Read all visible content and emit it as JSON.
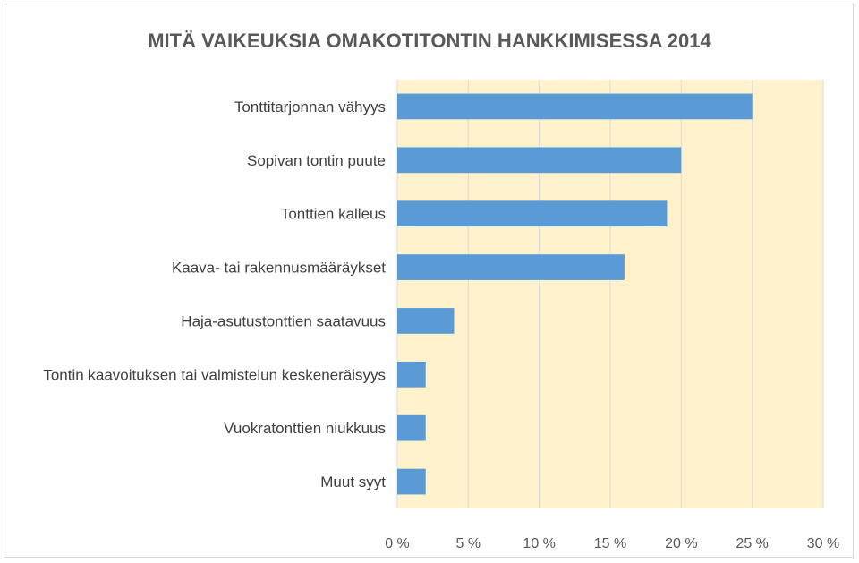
{
  "chart_data": {
    "type": "bar",
    "orientation": "horizontal",
    "title": "MITÄ VAIKEUKSIA OMAKOTITONTIN HANKKIMISESSA 2014",
    "categories": [
      "Tonttitarjonnan vähyys",
      "Sopivan tontin puute",
      "Tonttien kalleus",
      "Kaava- tai rakennusmääräykset",
      "Haja-asutustonttien saatavuus",
      "Tontin kaavoituksen tai valmistelun keskeneräisyys",
      "Vuokratonttien niukkuus",
      "Muut syyt"
    ],
    "values": [
      25,
      20,
      19,
      16,
      4,
      2,
      2,
      2
    ],
    "xlim": [
      0,
      30
    ],
    "xticks": [
      0,
      5,
      10,
      15,
      20,
      25,
      30
    ],
    "xtick_labels": [
      "0 %",
      "5 %",
      "10 %",
      "15 %",
      "20 %",
      "25 %",
      "30 %"
    ],
    "xlabel": "",
    "ylabel": "",
    "grid": "vertical",
    "colors": {
      "bar": "#5b9bd5",
      "plot_background": "#fff2cc",
      "grid": "#d9d9d9"
    }
  }
}
